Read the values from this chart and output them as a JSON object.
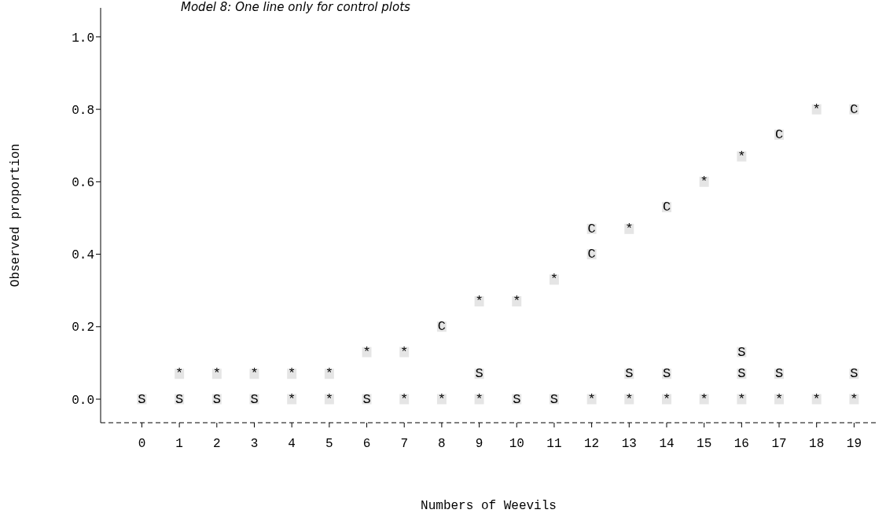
{
  "chart_data": {
    "type": "scatter",
    "title": "Model 8: One line only for control plots",
    "xlabel": "Numbers of Weevils",
    "ylabel": "Observed proportion",
    "xlim": [
      -1.1,
      19.6
    ],
    "xticks": [
      0,
      1,
      2,
      3,
      4,
      5,
      6,
      7,
      8,
      9,
      10,
      11,
      12,
      13,
      14,
      15,
      16,
      17,
      18,
      19
    ],
    "ylim": [
      -0.065,
      1.08
    ],
    "yticks": [
      {
        "value": 0,
        "label": "0.0"
      },
      {
        "value": 0.2,
        "label": "0.2"
      },
      {
        "value": 0.4,
        "label": "0.4"
      },
      {
        "value": 0.6,
        "label": "0.6"
      },
      {
        "value": 0.8,
        "label": "0.8"
      },
      {
        "value": 1.0,
        "label": "1.0"
      }
    ],
    "grid": false,
    "legend": false,
    "series": [
      {
        "name": "*",
        "color": "#000000",
        "x": [
          4,
          5,
          7,
          8,
          9,
          12,
          13,
          14,
          15,
          16,
          17,
          18,
          19,
          1,
          2,
          3,
          4,
          5,
          6,
          7,
          9,
          10,
          11,
          13,
          15,
          16,
          18
        ],
        "values": [
          0,
          0,
          0,
          0,
          0,
          0,
          0,
          0,
          0,
          0,
          0,
          0,
          0,
          0.07,
          0.07,
          0.07,
          0.07,
          0.07,
          0.13,
          0.13,
          0.27,
          0.27,
          0.33,
          0.47,
          0.6,
          0.67,
          0.8
        ]
      },
      {
        "name": "C",
        "color": "#000000",
        "x": [
          8,
          12,
          12,
          14,
          17,
          19
        ],
        "values": [
          0.2,
          0.4,
          0.47,
          0.53,
          0.73,
          0.8
        ]
      },
      {
        "name": "S",
        "color": "#000000",
        "x": [
          0,
          1,
          2,
          3,
          6,
          10,
          11,
          9,
          13,
          14,
          16,
          17,
          19,
          16
        ],
        "values": [
          0,
          0,
          0,
          0,
          0,
          0,
          0,
          0.07,
          0.07,
          0.07,
          0.07,
          0.07,
          0.07,
          0.13
        ]
      }
    ]
  }
}
